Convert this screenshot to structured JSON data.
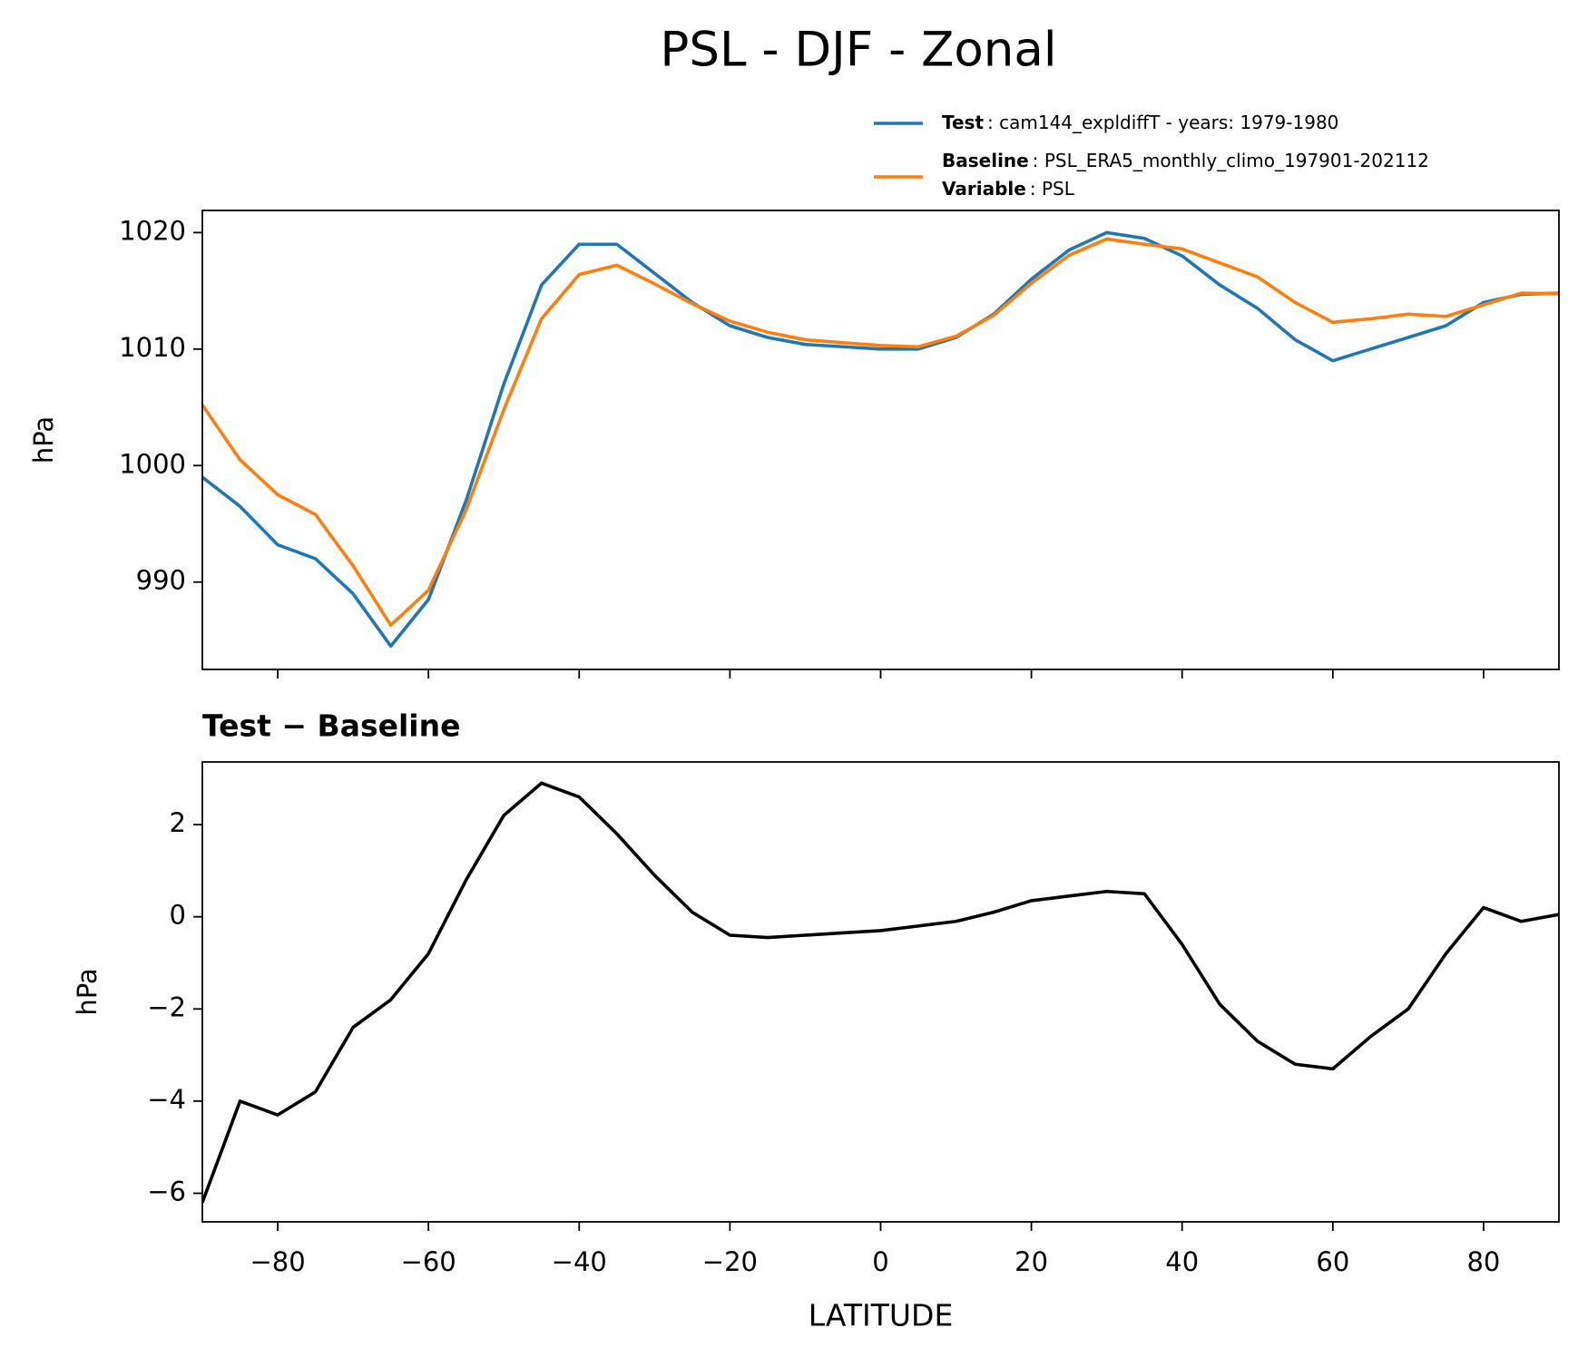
{
  "title": "PSL - DJF - Zonal",
  "chart_data": [
    {
      "type": "line",
      "x": [
        -90,
        -85,
        -80,
        -75,
        -70,
        -65,
        -60,
        -55,
        -50,
        -45,
        -40,
        -35,
        -30,
        -25,
        -20,
        -15,
        -10,
        -5,
        0,
        5,
        10,
        15,
        20,
        25,
        30,
        35,
        40,
        45,
        50,
        55,
        60,
        65,
        70,
        75,
        80,
        85,
        90
      ],
      "series": [
        {
          "name": "Test",
          "label": ": cam144_expldiffT - years: 1979-1980",
          "color": "#1f77b4",
          "values": [
            999.0,
            996.5,
            993.2,
            992.0,
            989.0,
            984.5,
            988.5,
            997.0,
            1007.0,
            1015.5,
            1019.0,
            1019.0,
            1016.5,
            1014.0,
            1012.0,
            1011.0,
            1010.4,
            1010.2,
            1010.0,
            1010.0,
            1011.0,
            1013.0,
            1016.0,
            1018.5,
            1020.0,
            1019.5,
            1018.0,
            1015.5,
            1013.5,
            1010.8,
            1009.0,
            1010.0,
            1011.0,
            1012.0,
            1014.0,
            1014.7,
            1014.8
          ]
        },
        {
          "name": "Baseline",
          "label": ": PSL_ERA5_monthly_climo_197901-202112",
          "variable_name": "Variable",
          "variable_label": ": PSL",
          "color": "#ff7f0e",
          "values": [
            1005.2,
            1000.5,
            997.5,
            995.8,
            991.4,
            986.3,
            989.3,
            996.2,
            1004.8,
            1012.6,
            1016.4,
            1017.2,
            1015.6,
            1013.9,
            1012.4,
            1011.45,
            1010.8,
            1010.55,
            1010.3,
            1010.2,
            1011.1,
            1012.9,
            1015.65,
            1018.05,
            1019.45,
            1019.0,
            1018.6,
            1017.4,
            1016.2,
            1014.0,
            1012.3,
            1012.6,
            1013.0,
            1012.8,
            1013.8,
            1014.8,
            1014.75
          ]
        }
      ],
      "xlim": [
        -90,
        90
      ],
      "xticks": [
        {
          "value": -80,
          "label": "−80"
        },
        {
          "value": -60,
          "label": "−60"
        },
        {
          "value": -40,
          "label": "−40"
        },
        {
          "value": -20,
          "label": "−20"
        },
        0,
        20,
        40,
        60,
        80
      ],
      "xtick_labels": false,
      "ylim": [
        982.5,
        1021.9
      ],
      "yticks": [
        990,
        1000,
        1010,
        1020
      ],
      "ylabel": "hPa",
      "legend": "upper right",
      "grid": false
    },
    {
      "type": "line",
      "title": "Test − Baseline",
      "x": [
        -90,
        -85,
        -80,
        -75,
        -70,
        -65,
        -60,
        -55,
        -50,
        -45,
        -40,
        -35,
        -30,
        -25,
        -20,
        -15,
        -10,
        -5,
        0,
        5,
        10,
        15,
        20,
        25,
        30,
        35,
        40,
        45,
        50,
        55,
        60,
        65,
        70,
        75,
        80,
        85,
        90
      ],
      "series": [
        {
          "color": "#000000",
          "values": [
            -6.2,
            -4.0,
            -4.3,
            -3.8,
            -2.4,
            -1.8,
            -0.8,
            0.8,
            2.2,
            2.9,
            2.6,
            1.8,
            0.9,
            0.1,
            -0.4,
            -0.45,
            -0.4,
            -0.35,
            -0.3,
            -0.2,
            -0.1,
            0.1,
            0.35,
            0.45,
            0.55,
            0.5,
            -0.6,
            -1.9,
            -2.7,
            -3.2,
            -3.3,
            -2.6,
            -2.0,
            -0.8,
            0.2,
            -0.1,
            0.05
          ]
        }
      ],
      "xlim": [
        -90,
        90
      ],
      "xticks": [
        {
          "value": -80,
          "label": "−80"
        },
        {
          "value": -60,
          "label": "−60"
        },
        {
          "value": -40,
          "label": "−40"
        },
        {
          "value": -20,
          "label": "−20"
        },
        0,
        20,
        40,
        60,
        80
      ],
      "xtick_labels": true,
      "xlabel": "LATITUDE",
      "ylim": [
        -6.62,
        3.36
      ],
      "yticks": [
        {
          "value": -6,
          "label": "−6"
        },
        {
          "value": -4,
          "label": "−4"
        },
        {
          "value": -2,
          "label": "−2"
        },
        0,
        2
      ],
      "ylabel": "hPa",
      "grid": false
    }
  ]
}
